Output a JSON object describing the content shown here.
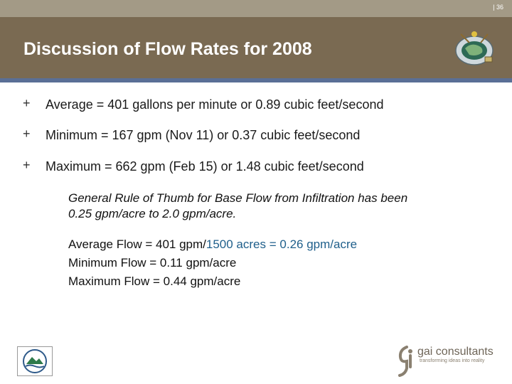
{
  "header": {
    "slide_number": "| 36",
    "title": "Discussion of Flow Rates for 2008"
  },
  "bullets": [
    {
      "marker": "+",
      "text": "Average  = 401 gallons per minute  or  0.89 cubic feet/second"
    },
    {
      "marker": "+",
      "text": "Minimum = 167 gpm (Nov 11)  or  0.37 cubic feet/second"
    },
    {
      "marker": "+",
      "text": "Maximum = 662 gpm (Feb 15)  or  1.48 cubic feet/second"
    }
  ],
  "rule_of_thumb": {
    "line1": "General Rule of Thumb for Base Flow from Infiltration has been",
    "line2": "0.25 gpm/acre to 2.0 gpm/acre."
  },
  "flows": {
    "average_prefix": "Average Flow = 401 gpm/",
    "average_acres": "1500 acres",
    "average_eq": " = 0.26 gpm/acre",
    "minimum": "Minimum Flow =  0.11 gpm/acre",
    "maximum": "Maximum Flow =  0.44 gpm/acre"
  },
  "footer": {
    "company_name": "gai consultants",
    "company_tagline": "transforming ideas into reality"
  },
  "colors": {
    "header_bg": "#7a6a52",
    "topbar_bg": "#a39a86",
    "accent_line": "#5a6f96",
    "highlight_blue": "#1f5f8b"
  }
}
